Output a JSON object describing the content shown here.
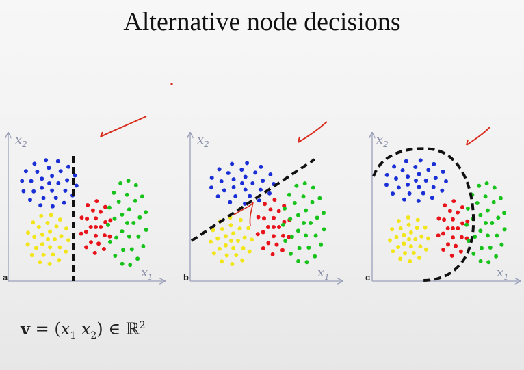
{
  "title": "Alternative node decisions",
  "panels": [
    {
      "letter": "a",
      "x_label": "x",
      "x_sub": "1",
      "y_label": "x",
      "y_sub": "2"
    },
    {
      "letter": "b",
      "x_label": "x",
      "x_sub": "1",
      "y_label": "x",
      "y_sub": "2"
    },
    {
      "letter": "c",
      "x_label": "x",
      "x_sub": "1",
      "y_label": "x",
      "y_sub": "2"
    }
  ],
  "formula": {
    "vec": "v",
    "eq": "=",
    "open": "(",
    "var1": "x",
    "sub1": "1",
    "var2": "x",
    "sub2": "2",
    "close": ")",
    "in": "∈",
    "space": "ℝ",
    "power": "2"
  },
  "colors": {
    "blue": "#1a2fd6",
    "red": "#e8141b",
    "green": "#17c21b",
    "yellow": "#f2e51a",
    "annotation": "#d92b1c",
    "axis": "#9aa0b8",
    "boundary": "#111111"
  },
  "icons": [
    "checkmark-annotation-icon"
  ]
}
